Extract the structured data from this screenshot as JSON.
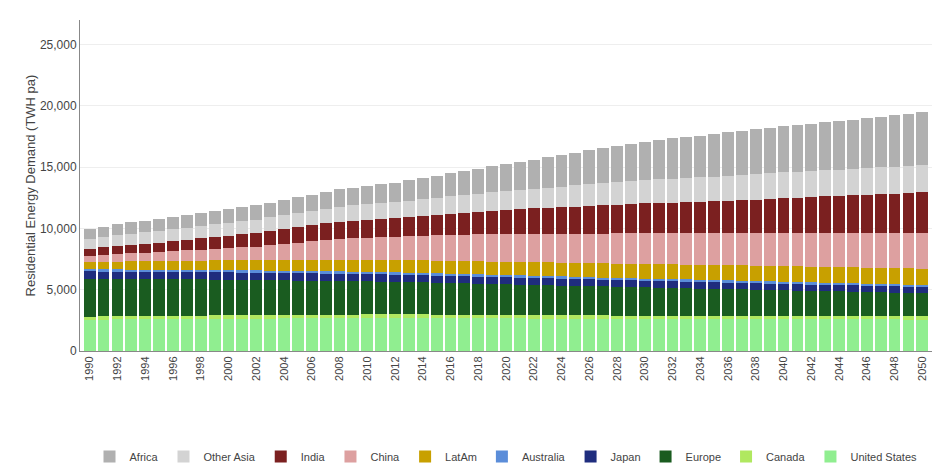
{
  "chart_data": {
    "type": "bar",
    "stacked": true,
    "ylabel": "Residential Energy Demand (TWH pa)",
    "x": [
      1990,
      1991,
      1992,
      1993,
      1994,
      1995,
      1996,
      1997,
      1998,
      1999,
      2000,
      2001,
      2002,
      2003,
      2004,
      2005,
      2006,
      2007,
      2008,
      2009,
      2010,
      2011,
      2012,
      2013,
      2014,
      2015,
      2016,
      2017,
      2018,
      2019,
      2020,
      2021,
      2022,
      2023,
      2024,
      2025,
      2026,
      2027,
      2028,
      2029,
      2030,
      2031,
      2032,
      2033,
      2034,
      2035,
      2036,
      2037,
      2038,
      2039,
      2040,
      2041,
      2042,
      2043,
      2044,
      2045,
      2046,
      2047,
      2048,
      2049,
      2050
    ],
    "xlim": [
      1989.3,
      2050.7
    ],
    "xticks": [
      1990,
      1992,
      1994,
      1996,
      1998,
      2000,
      2002,
      2004,
      2006,
      2008,
      2010,
      2012,
      2014,
      2016,
      2018,
      2020,
      2022,
      2024,
      2026,
      2028,
      2030,
      2032,
      2034,
      2036,
      2038,
      2040,
      2042,
      2044,
      2046,
      2048,
      2050
    ],
    "ylim": [
      0,
      27000
    ],
    "yticks": [
      0,
      {
        "value": 5000,
        "label": "5,000"
      },
      {
        "value": 10000,
        "label": "10,000"
      },
      {
        "value": 15000,
        "label": "15,000"
      },
      {
        "value": 20000,
        "label": "20,000"
      },
      {
        "value": 25000,
        "label": "25,000"
      }
    ],
    "grid": true,
    "legend": "bottom",
    "series": [
      {
        "name": "United States",
        "color": "#90ee90",
        "values": [
          2550,
          2560,
          2570,
          2575,
          2580,
          2590,
          2600,
          2610,
          2620,
          2625,
          2630,
          2640,
          2645,
          2650,
          2655,
          2660,
          2665,
          2670,
          2675,
          2680,
          2685,
          2690,
          2695,
          2695,
          2690,
          2685,
          2680,
          2675,
          2670,
          2665,
          2660,
          2655,
          2650,
          2645,
          2640,
          2635,
          2630,
          2625,
          2620,
          2618,
          2615,
          2613,
          2610,
          2608,
          2605,
          2603,
          2600,
          2598,
          2595,
          2593,
          2590,
          2588,
          2585,
          2583,
          2580,
          2578,
          2575,
          2573,
          2570,
          2568,
          2565
        ]
      },
      {
        "name": "Canada",
        "color": "#b0e860",
        "values": [
          260,
          262,
          264,
          266,
          268,
          270,
          272,
          274,
          276,
          278,
          280,
          282,
          284,
          286,
          288,
          290,
          292,
          294,
          296,
          295,
          294,
          293,
          292,
          291,
          290,
          289,
          288,
          287,
          286,
          285,
          284,
          283,
          282,
          281,
          280,
          279,
          278,
          277,
          276,
          275,
          274,
          273,
          272,
          271,
          270,
          269,
          268,
          267,
          266,
          265,
          264,
          263,
          262,
          261,
          260,
          259,
          258,
          257,
          256,
          255,
          254
        ]
      },
      {
        "name": "Europe",
        "color": "#1a5c20",
        "values": [
          3100,
          3080,
          3060,
          3040,
          3020,
          3000,
          2980,
          2960,
          2940,
          2920,
          2900,
          2880,
          2860,
          2840,
          2820,
          2800,
          2780,
          2760,
          2740,
          2720,
          2700,
          2680,
          2660,
          2640,
          2620,
          2600,
          2580,
          2560,
          2540,
          2520,
          2500,
          2480,
          2460,
          2440,
          2420,
          2400,
          2380,
          2360,
          2340,
          2320,
          2300,
          2280,
          2260,
          2240,
          2220,
          2200,
          2180,
          2160,
          2140,
          2120,
          2100,
          2080,
          2060,
          2040,
          2020,
          2000,
          1980,
          1960,
          1940,
          1920,
          1900
        ]
      },
      {
        "name": "Japan",
        "color": "#1f2d7e",
        "values": [
          580,
          582,
          584,
          586,
          588,
          590,
          592,
          594,
          596,
          598,
          600,
          598,
          596,
          594,
          592,
          590,
          588,
          586,
          584,
          582,
          580,
          578,
          576,
          574,
          572,
          570,
          568,
          566,
          564,
          562,
          560,
          558,
          556,
          554,
          552,
          550,
          548,
          546,
          544,
          542,
          540,
          538,
          536,
          534,
          532,
          530,
          528,
          526,
          524,
          522,
          520,
          518,
          516,
          514,
          512,
          510,
          508,
          506,
          504,
          502,
          500
        ]
      },
      {
        "name": "Australia",
        "color": "#5b8dd9",
        "values": [
          170,
          172,
          174,
          176,
          178,
          180,
          182,
          184,
          186,
          188,
          190,
          192,
          194,
          196,
          198,
          200,
          202,
          204,
          206,
          205,
          204,
          203,
          202,
          201,
          200,
          199,
          198,
          197,
          196,
          195,
          194,
          193,
          192,
          191,
          190,
          189,
          188,
          187,
          186,
          185,
          184,
          183,
          182,
          181,
          180,
          179,
          178,
          177,
          176,
          175,
          174,
          173,
          172,
          171,
          170,
          169,
          168,
          167,
          166,
          165,
          164
        ]
      },
      {
        "name": "LatAm",
        "color": "#c8a000",
        "values": [
          600,
          620,
          640,
          660,
          680,
          700,
          720,
          740,
          760,
          780,
          800,
          820,
          840,
          860,
          880,
          900,
          920,
          940,
          960,
          970,
          980,
          990,
          1000,
          1010,
          1020,
          1030,
          1040,
          1050,
          1060,
          1070,
          1080,
          1090,
          1100,
          1110,
          1120,
          1130,
          1140,
          1150,
          1160,
          1170,
          1180,
          1190,
          1200,
          1210,
          1220,
          1230,
          1240,
          1250,
          1260,
          1270,
          1280,
          1285,
          1290,
          1295,
          1300,
          1305,
          1310,
          1315,
          1320,
          1325,
          1330
        ]
      },
      {
        "name": "China",
        "color": "#dda0a0",
        "values": [
          500,
          560,
          620,
          680,
          720,
          760,
          800,
          850,
          900,
          950,
          1000,
          1050,
          1100,
          1200,
          1300,
          1400,
          1500,
          1600,
          1700,
          1750,
          1800,
          1850,
          1900,
          1950,
          2000,
          2050,
          2100,
          2150,
          2200,
          2250,
          2300,
          2320,
          2340,
          2360,
          2380,
          2400,
          2420,
          2440,
          2460,
          2480,
          2500,
          2520,
          2540,
          2560,
          2580,
          2600,
          2620,
          2640,
          2660,
          2680,
          2700,
          2720,
          2740,
          2760,
          2780,
          2800,
          2820,
          2840,
          2860,
          2880,
          2900
        ]
      },
      {
        "name": "India",
        "color": "#7b2020",
        "values": [
          600,
          630,
          660,
          690,
          720,
          750,
          800,
          850,
          900,
          950,
          1000,
          1050,
          1100,
          1150,
          1200,
          1250,
          1300,
          1350,
          1400,
          1430,
          1460,
          1490,
          1520,
          1570,
          1630,
          1700,
          1750,
          1800,
          1850,
          1900,
          1950,
          2000,
          2050,
          2100,
          2150,
          2200,
          2250,
          2300,
          2350,
          2400,
          2450,
          2480,
          2510,
          2540,
          2570,
          2600,
          2640,
          2680,
          2730,
          2780,
          2830,
          2880,
          2930,
          2980,
          3030,
          3080,
          3130,
          3180,
          3230,
          3280,
          3330
        ]
      },
      {
        "name": "Other Asia",
        "color": "#d3d3d3",
        "values": [
          800,
          840,
          880,
          910,
          940,
          960,
          980,
          1000,
          1020,
          1040,
          1060,
          1080,
          1100,
          1120,
          1140,
          1160,
          1180,
          1200,
          1220,
          1240,
          1260,
          1280,
          1300,
          1330,
          1360,
          1390,
          1420,
          1450,
          1480,
          1510,
          1540,
          1570,
          1600,
          1640,
          1680,
          1720,
          1760,
          1800,
          1840,
          1880,
          1920,
          1940,
          1960,
          1980,
          2000,
          2020,
          2040,
          2060,
          2080,
          2100,
          2110,
          2120,
          2130,
          2140,
          2150,
          2160,
          2170,
          2180,
          2190,
          2200,
          2210
        ]
      },
      {
        "name": "Africa",
        "color": "#b0b0b0",
        "values": [
          800,
          840,
          880,
          910,
          950,
          980,
          1000,
          1020,
          1050,
          1080,
          1100,
          1130,
          1160,
          1200,
          1240,
          1280,
          1320,
          1360,
          1400,
          1430,
          1480,
          1530,
          1580,
          1650,
          1720,
          1800,
          1870,
          1950,
          2030,
          2120,
          2200,
          2290,
          2380,
          2490,
          2590,
          2680,
          2780,
          2880,
          2980,
          3050,
          3120,
          3200,
          3280,
          3340,
          3400,
          3470,
          3530,
          3600,
          3650,
          3710,
          3770,
          3820,
          3870,
          3920,
          3970,
          4020,
          4080,
          4140,
          4200,
          4260,
          4330
        ]
      }
    ]
  }
}
